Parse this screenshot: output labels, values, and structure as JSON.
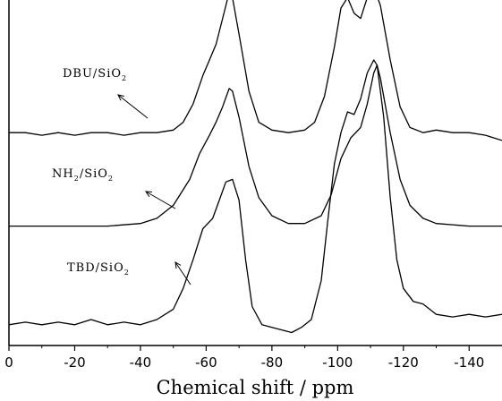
{
  "chart_data": {
    "type": "line",
    "xlabel": "Chemical shift / ppm",
    "ylabel": "",
    "xlim": [
      0,
      -150
    ],
    "x_ticks": [
      0,
      -20,
      -40,
      -60,
      -80,
      -100,
      -120,
      -140
    ],
    "x_tick_labels": [
      "0",
      "-20",
      "-40",
      "-60",
      "-80",
      "-100",
      "-120",
      "-140"
    ],
    "grid": false,
    "series": [
      {
        "name": "DBU/SiO2",
        "label_main": "DBU/SiO",
        "label_sub": "2",
        "points": [
          [
            0,
            0.82
          ],
          [
            -5,
            0.82
          ],
          [
            -10,
            0.81
          ],
          [
            -15,
            0.82
          ],
          [
            -20,
            0.81
          ],
          [
            -25,
            0.82
          ],
          [
            -30,
            0.82
          ],
          [
            -35,
            0.81
          ],
          [
            -40,
            0.82
          ],
          [
            -45,
            0.82
          ],
          [
            -50,
            0.83
          ],
          [
            -53,
            0.86
          ],
          [
            -56,
            0.93
          ],
          [
            -59,
            1.04
          ],
          [
            -61,
            1.1
          ],
          [
            -63,
            1.16
          ],
          [
            -65,
            1.26
          ],
          [
            -67,
            1.36
          ],
          [
            -68,
            1.34
          ],
          [
            -70,
            1.2
          ],
          [
            -73,
            0.98
          ],
          [
            -76,
            0.86
          ],
          [
            -80,
            0.83
          ],
          [
            -85,
            0.82
          ],
          [
            -90,
            0.83
          ],
          [
            -93,
            0.86
          ],
          [
            -96,
            0.96
          ],
          [
            -99,
            1.15
          ],
          [
            -101,
            1.3
          ],
          [
            -103,
            1.34
          ],
          [
            -105,
            1.28
          ],
          [
            -107,
            1.26
          ],
          [
            -109,
            1.34
          ],
          [
            -111,
            1.38
          ],
          [
            -113,
            1.31
          ],
          [
            -116,
            1.1
          ],
          [
            -119,
            0.92
          ],
          [
            -122,
            0.84
          ],
          [
            -126,
            0.82
          ],
          [
            -130,
            0.83
          ],
          [
            -135,
            0.82
          ],
          [
            -140,
            0.82
          ],
          [
            -145,
            0.81
          ],
          [
            -150,
            0.79
          ]
        ]
      },
      {
        "name": "NH2/SiO2",
        "label_main": "NH",
        "label_sub": "2",
        "label_main2": "/SiO",
        "label_sub2": "2",
        "points": [
          [
            0,
            0.46
          ],
          [
            -10,
            0.46
          ],
          [
            -20,
            0.46
          ],
          [
            -30,
            0.46
          ],
          [
            -40,
            0.47
          ],
          [
            -45,
            0.49
          ],
          [
            -50,
            0.54
          ],
          [
            -55,
            0.64
          ],
          [
            -58,
            0.74
          ],
          [
            -61,
            0.81
          ],
          [
            -63,
            0.86
          ],
          [
            -65,
            0.92
          ],
          [
            -67,
            0.99
          ],
          [
            -68,
            0.98
          ],
          [
            -70,
            0.88
          ],
          [
            -73,
            0.69
          ],
          [
            -76,
            0.57
          ],
          [
            -80,
            0.5
          ],
          [
            -85,
            0.47
          ],
          [
            -90,
            0.47
          ],
          [
            -95,
            0.5
          ],
          [
            -98,
            0.58
          ],
          [
            -101,
            0.72
          ],
          [
            -104,
            0.8
          ],
          [
            -107,
            0.84
          ],
          [
            -109,
            0.93
          ],
          [
            -111,
            1.05
          ],
          [
            -112,
            1.08
          ],
          [
            -113,
            1.03
          ],
          [
            -116,
            0.82
          ],
          [
            -119,
            0.64
          ],
          [
            -122,
            0.54
          ],
          [
            -126,
            0.49
          ],
          [
            -130,
            0.47
          ],
          [
            -140,
            0.46
          ],
          [
            -150,
            0.46
          ]
        ]
      },
      {
        "name": "TBD/SiO2",
        "label_main": "TBD/SiO",
        "label_sub": "2",
        "points": [
          [
            0,
            0.08
          ],
          [
            -5,
            0.09
          ],
          [
            -10,
            0.08
          ],
          [
            -15,
            0.09
          ],
          [
            -20,
            0.08
          ],
          [
            -25,
            0.1
          ],
          [
            -30,
            0.08
          ],
          [
            -35,
            0.09
          ],
          [
            -40,
            0.08
          ],
          [
            -45,
            0.1
          ],
          [
            -50,
            0.14
          ],
          [
            -53,
            0.22
          ],
          [
            -56,
            0.33
          ],
          [
            -59,
            0.45
          ],
          [
            -62,
            0.49
          ],
          [
            -64,
            0.56
          ],
          [
            -66,
            0.63
          ],
          [
            -68,
            0.64
          ],
          [
            -70,
            0.56
          ],
          [
            -72,
            0.33
          ],
          [
            -74,
            0.15
          ],
          [
            -77,
            0.08
          ],
          [
            -80,
            0.07
          ],
          [
            -83,
            0.06
          ],
          [
            -86,
            0.05
          ],
          [
            -89,
            0.07
          ],
          [
            -92,
            0.1
          ],
          [
            -95,
            0.25
          ],
          [
            -97,
            0.48
          ],
          [
            -99,
            0.7
          ],
          [
            -101,
            0.82
          ],
          [
            -103,
            0.9
          ],
          [
            -105,
            0.89
          ],
          [
            -107,
            0.95
          ],
          [
            -109,
            1.05
          ],
          [
            -111,
            1.1
          ],
          [
            -112,
            1.08
          ],
          [
            -114,
            0.88
          ],
          [
            -116,
            0.57
          ],
          [
            -118,
            0.33
          ],
          [
            -120,
            0.22
          ],
          [
            -123,
            0.17
          ],
          [
            -126,
            0.16
          ],
          [
            -130,
            0.12
          ],
          [
            -135,
            0.11
          ],
          [
            -140,
            0.12
          ],
          [
            -145,
            0.11
          ],
          [
            -150,
            0.12
          ]
        ]
      }
    ]
  }
}
